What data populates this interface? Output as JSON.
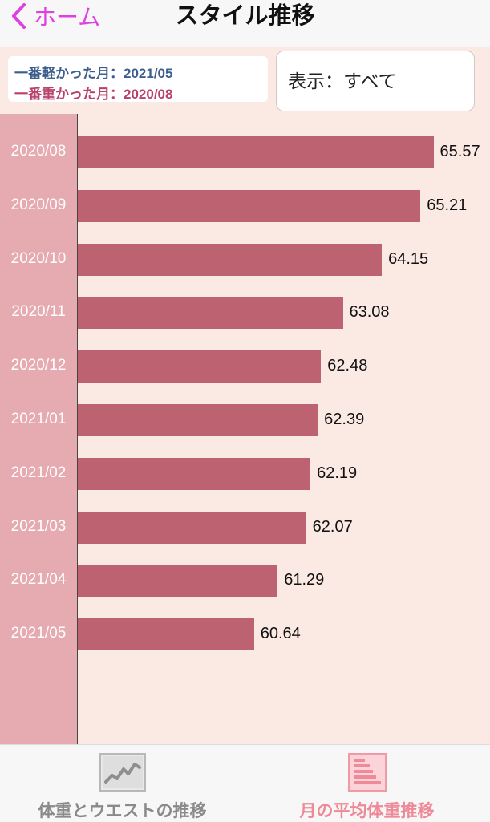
{
  "header": {
    "back_label": "ホーム",
    "title": "スタイル推移"
  },
  "summary": {
    "lightest_label": "一番軽かった月：2021/05",
    "heaviest_label": "一番重かった月：2020/08"
  },
  "display_filter": {
    "label": "表示：すべて"
  },
  "colors": {
    "accent": "#e040e0",
    "bar": "#bd6270",
    "label_column": "#e6aab1",
    "lightest_text": "#3d5f8f",
    "heaviest_text": "#b8406a",
    "active_tab": "#ee8a98"
  },
  "chart_data": {
    "type": "bar",
    "orientation": "horizontal",
    "categories": [
      "2020/08",
      "2020/09",
      "2020/10",
      "2020/11",
      "2020/12",
      "2021/01",
      "2021/02",
      "2021/03",
      "2021/04",
      "2021/05"
    ],
    "values": [
      65.57,
      65.21,
      64.15,
      63.08,
      62.48,
      62.39,
      62.19,
      62.07,
      61.29,
      60.64
    ],
    "value_labels": [
      "65.57",
      "65.21",
      "64.15",
      "63.08",
      "62.48",
      "62.39",
      "62.19",
      "62.07",
      "61.29",
      "60.64"
    ]
  },
  "tabs": [
    {
      "label": "体重とウエストの推移",
      "icon": "line-chart-icon",
      "active": false
    },
    {
      "label": "月の平均体重推移",
      "icon": "bar-chart-icon",
      "active": true
    }
  ]
}
